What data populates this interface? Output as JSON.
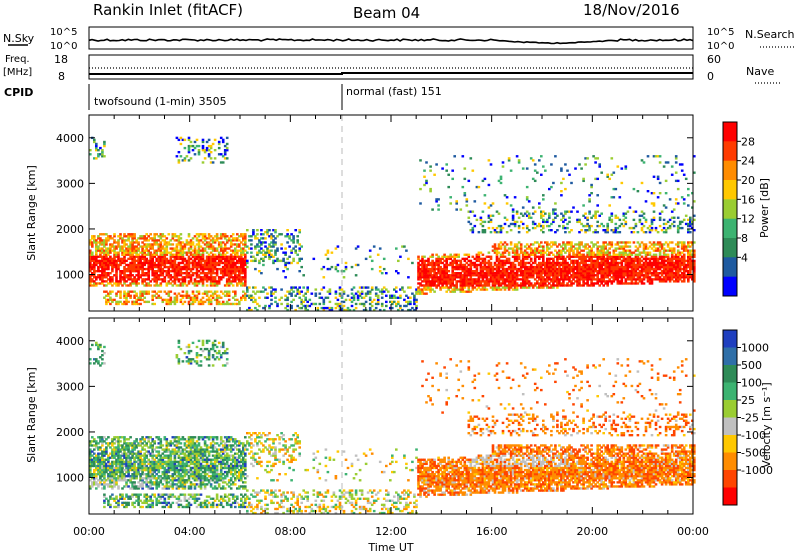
{
  "header": {
    "title": "Rankin Inlet (fitACF)",
    "beam": "Beam 04",
    "date": "18/Nov/2016"
  },
  "top_panels": {
    "nsky_label": "N.Sky",
    "nsky_ticks": [
      "10^5",
      "10^0"
    ],
    "nsearch_label": "N.Search",
    "nsearch_ticks": [
      "10^5",
      "10^0"
    ],
    "freq_label": "Freq.",
    "freq_unit": "[MHz]",
    "freq_ticks": [
      "18",
      "8"
    ],
    "nave_label": "Nave",
    "nave_ticks": [
      "60",
      "0"
    ],
    "cpid_label": "CPID",
    "cpid_modes": [
      "twofsound (1-min) 3505",
      "normal (fast) 151"
    ]
  },
  "chart_data": [
    {
      "type": "heatmap",
      "name": "power-panel",
      "ylabel": "Slant Range [km]",
      "ylim": [
        200,
        4500
      ],
      "yticks": [
        1000,
        2000,
        3000,
        4000
      ],
      "xlim": [
        0,
        24
      ],
      "colorbar": {
        "label": "Power [dB]",
        "ticks": [
          "28",
          "24",
          "20",
          "16",
          "12",
          "8",
          "4"
        ],
        "colors": [
          "#ff0000",
          "#ff3b00",
          "#ff8c00",
          "#ffc800",
          "#9acd32",
          "#3cb371",
          "#2e8b57",
          "#1e5aa0",
          "#0000ff"
        ]
      },
      "features": [
        {
          "t": [
            0.0,
            6.0
          ],
          "range": [
            700,
            1900
          ],
          "note": "dense band"
        },
        {
          "t": [
            13.0,
            24.0
          ],
          "range": [
            500,
            1600
          ],
          "note": "dense band"
        }
      ]
    },
    {
      "type": "heatmap",
      "name": "velocity-panel",
      "ylabel": "Slant Range [km]",
      "ylim": [
        200,
        4500
      ],
      "yticks": [
        1000,
        2000,
        3000,
        4000
      ],
      "xlim": [
        0,
        24
      ],
      "xlabel": "Time UT",
      "xticks": [
        "00:00",
        "04:00",
        "08:00",
        "12:00",
        "16:00",
        "20:00",
        "00:00"
      ],
      "colorbar": {
        "label": "Velocity [m s⁻¹]",
        "ticks": [
          "1000",
          "500",
          "100",
          "25",
          "-25",
          "-100",
          "-500",
          "-1000"
        ],
        "colors": [
          "#1f3fbf",
          "#2f6fa8",
          "#2e8b57",
          "#3cb371",
          "#9acd32",
          "#c0c0c0",
          "#ffc800",
          "#ff8c00",
          "#ff4500",
          "#ff0000"
        ]
      }
    }
  ],
  "colors": {
    "cpid_split_time": 10.0
  }
}
